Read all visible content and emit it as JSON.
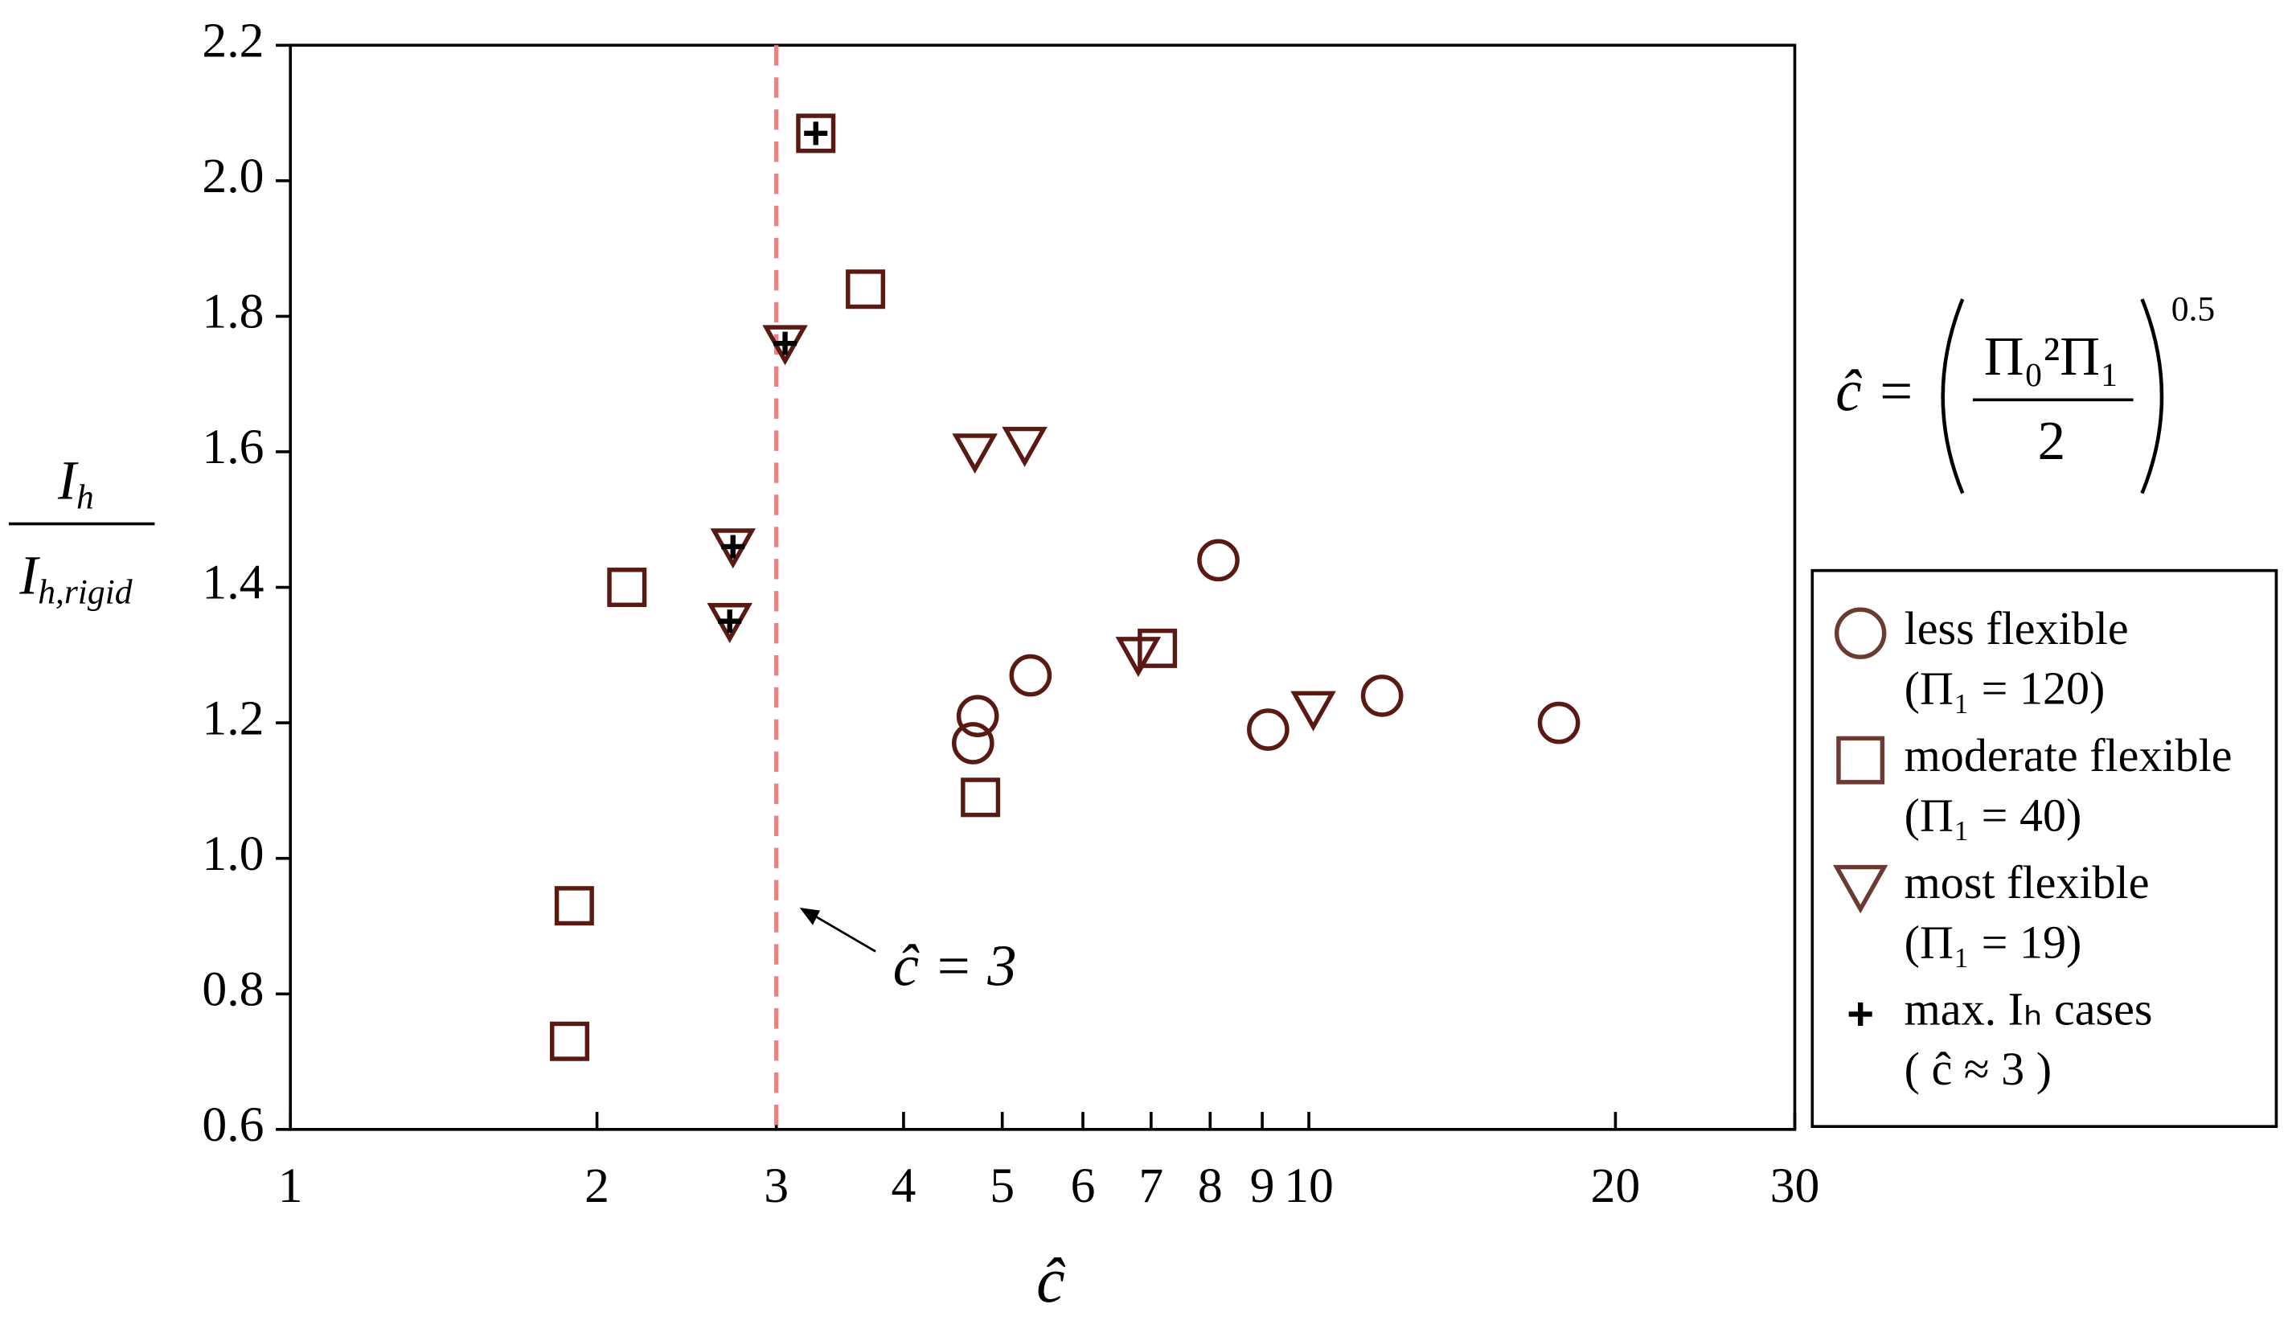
{
  "chart_data": {
    "type": "scatter",
    "x_label": "ĉ",
    "y_label": {
      "numerator": "I",
      "numerator_sub": "h",
      "denominator": "I",
      "denominator_sub": "h,rigid"
    },
    "xscale": "log",
    "xlim": [
      1,
      30
    ],
    "xticks": [
      1,
      2,
      3,
      4,
      5,
      6,
      7,
      8,
      9,
      10,
      20,
      30
    ],
    "ylim": [
      0.6,
      2.2
    ],
    "yticks": [
      0.6,
      0.8,
      {
        "value": 1.0,
        "label": "1.0"
      },
      1.2,
      1.4,
      1.6,
      1.8,
      {
        "value": 2.0,
        "label": "2.0"
      },
      2.2
    ],
    "grid": false,
    "legend": "right",
    "series": [
      {
        "name": "less flexible",
        "note": "(Π₁ =  120)",
        "marker": "circle",
        "color": "#5a1a14",
        "x": [
          8.15,
          5.33,
          4.73,
          4.68,
          9.12,
          11.8,
          17.6
        ],
        "values": [
          1.44,
          1.27,
          1.21,
          1.17,
          1.19,
          1.24,
          1.2
        ]
      },
      {
        "name": "moderate flexible",
        "note": "(Π₁ =  40)",
        "marker": "square",
        "color": "#5a1a14",
        "x": [
          3.28,
          3.67,
          2.14,
          7.1,
          4.76,
          1.9,
          1.88
        ],
        "values": [
          2.07,
          1.84,
          1.4,
          1.31,
          1.09,
          0.93,
          0.73
        ]
      },
      {
        "name": "most flexible",
        "note": "(Π₁ =  19)",
        "marker": "triangle",
        "color": "#5a1a14",
        "x": [
          3.06,
          4.7,
          5.26,
          2.72,
          2.7,
          6.8,
          10.1
        ],
        "values": [
          1.76,
          1.6,
          1.61,
          1.46,
          1.35,
          1.3,
          1.22
        ]
      },
      {
        "name": "max. Iₕ cases",
        "note": "( ĉ ≈ 3 )",
        "marker": "plus",
        "color": "#000000",
        "x": [
          3.28,
          3.06,
          2.72,
          2.7
        ],
        "values": [
          2.07,
          1.76,
          1.46,
          1.35
        ]
      }
    ],
    "reference_line": {
      "x": 3,
      "color": "#f08080",
      "label": "ĉ = 3"
    },
    "formula": {
      "lhs": "ĉ =",
      "numerator": "Π₀²Π₁",
      "denominator": "2",
      "exponent": "0.5"
    }
  }
}
